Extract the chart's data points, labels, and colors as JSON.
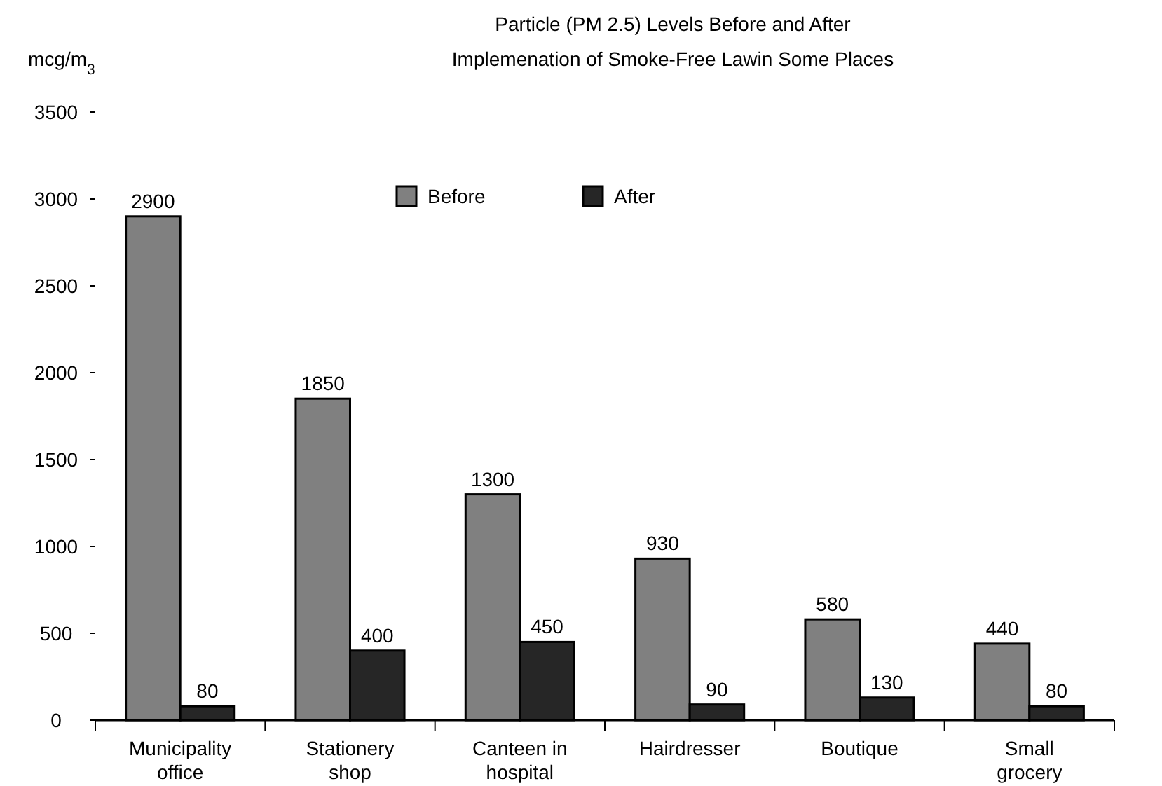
{
  "chart_data": {
    "type": "bar",
    "title": "Particle (PM 2.5) Levels Before and After\nImplemenation of Smoke-Free Lawin Some Places",
    "ylabel": "mcg/m$_{3}$",
    "categories": [
      "Municipality office",
      "Stationery shop",
      "Canteen in hospital",
      "Hairdresser",
      "Boutique",
      "Small grocery"
    ],
    "series": [
      {
        "name": "Before",
        "color": "#808080",
        "values": [
          2900,
          1850,
          1300,
          930,
          580,
          440
        ]
      },
      {
        "name": "After",
        "color": "#262626",
        "values": [
          80,
          400,
          450,
          90,
          130,
          80
        ]
      }
    ],
    "ylim": [
      0,
      3500
    ],
    "yticks": [
      0,
      500,
      1000,
      1500,
      2000,
      2500,
      3000,
      3500
    ],
    "grid": false,
    "legend": "top",
    "data_labels": true
  }
}
